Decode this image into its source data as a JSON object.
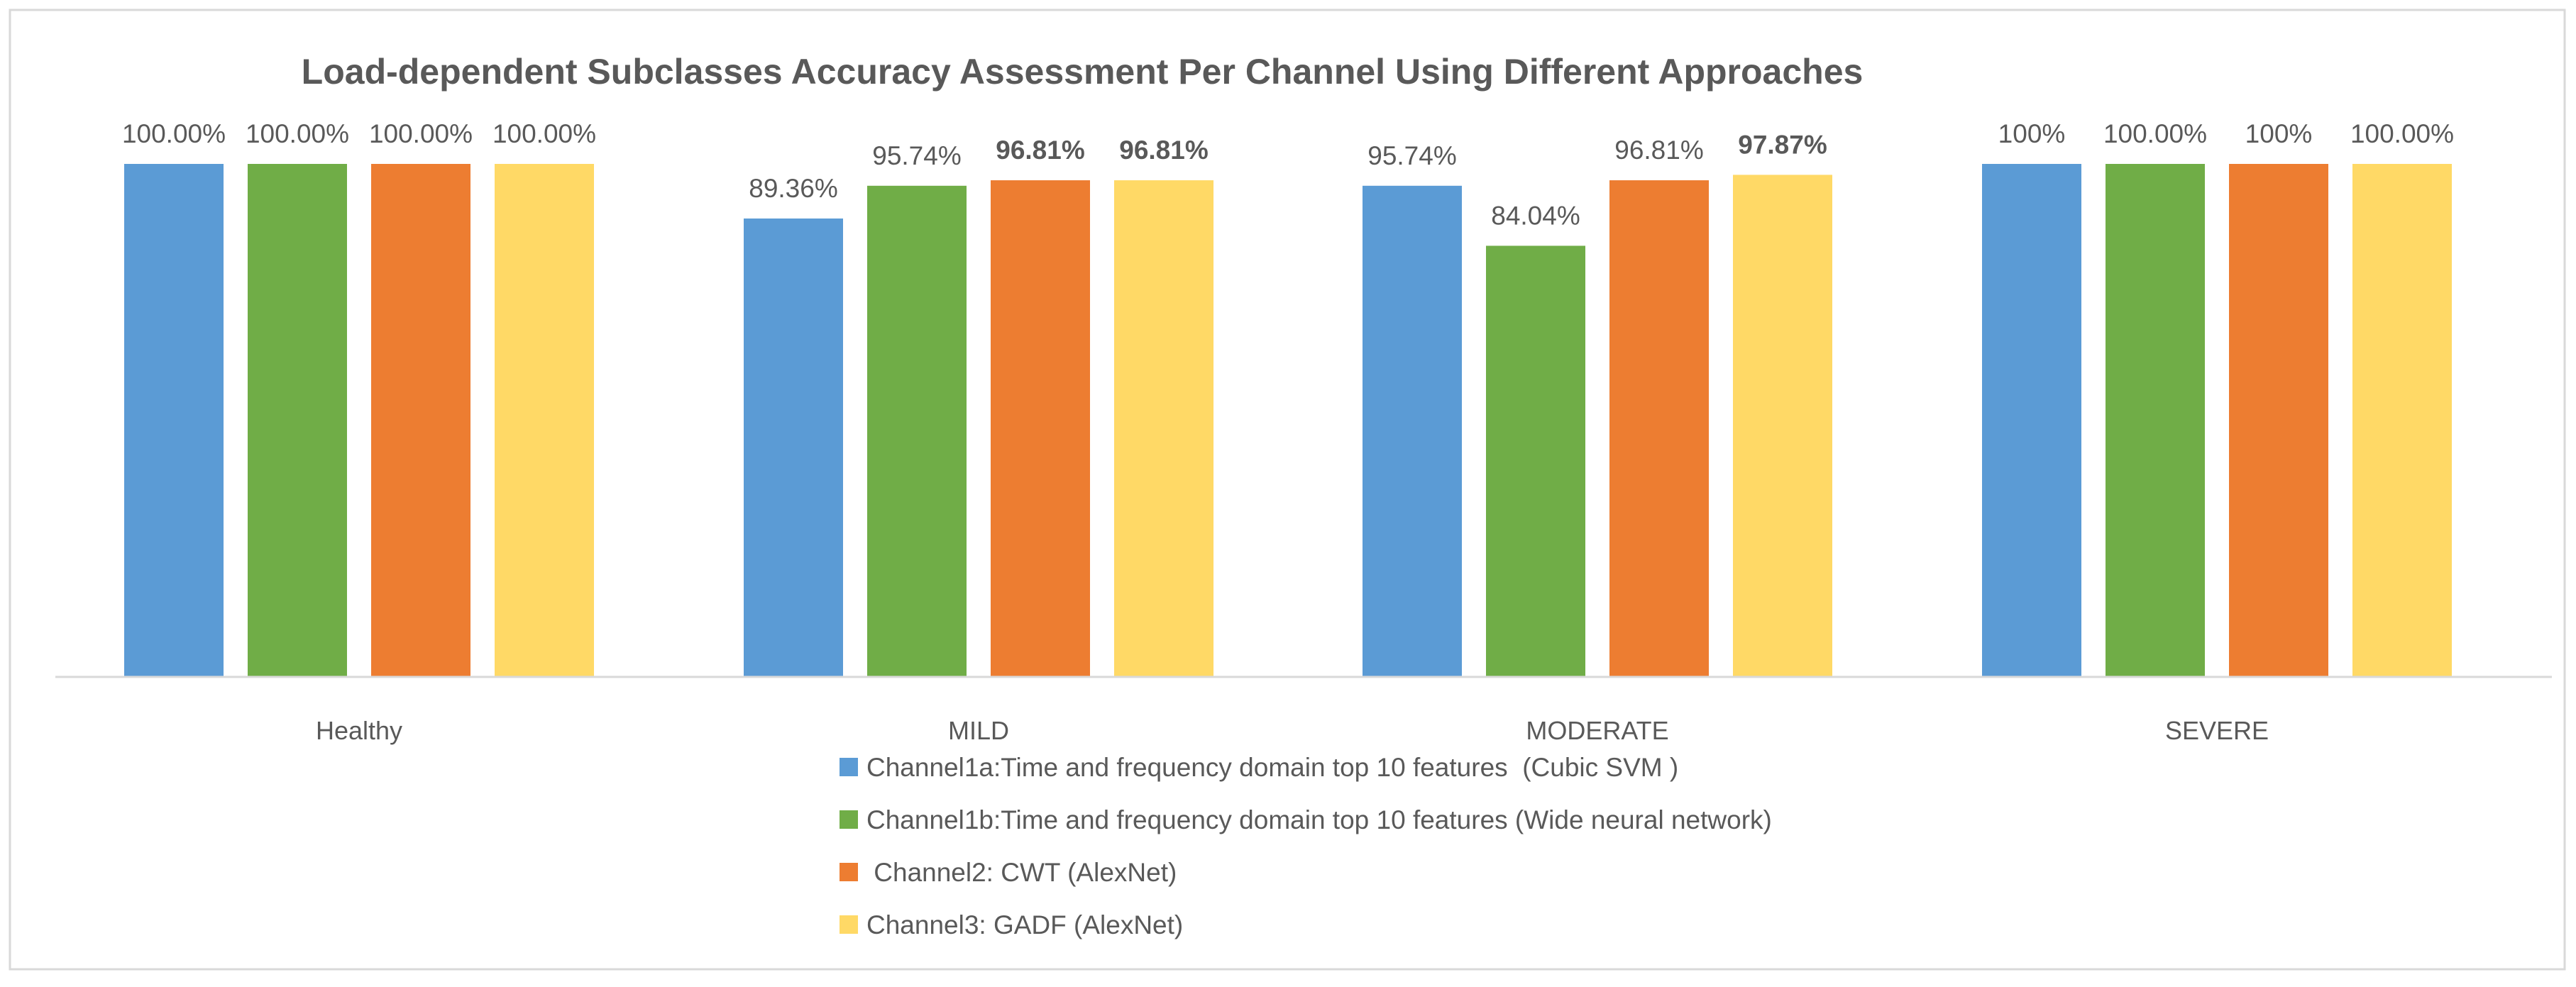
{
  "chart_data": {
    "type": "bar",
    "title": "Load-dependent Subclasses Accuracy Assessment Per Channel Using Different Approaches",
    "xlabel": "",
    "ylabel": "",
    "ylim": [
      0,
      100
    ],
    "grid": false,
    "legend_position": "bottom-center",
    "categories": [
      "Healthy",
      "MILD",
      "MODERATE",
      "SEVERE"
    ],
    "series": [
      {
        "name": "Channel1a:Time and frequency domain top 10 features  (Cubic SVM )",
        "color": "#5B9BD5",
        "values": [
          100,
          89.36,
          95.74,
          100
        ],
        "labels": [
          "100.00%",
          "89.36%",
          "95.74%",
          "100%"
        ],
        "bold": [
          false,
          false,
          false,
          false
        ]
      },
      {
        "name": "Channel1b:Time and frequency domain top 10 features (Wide neural network)",
        "color": "#70AD47",
        "values": [
          100,
          95.74,
          84.04,
          100
        ],
        "labels": [
          "100.00%",
          "95.74%",
          "84.04%",
          "100.00%"
        ],
        "bold": [
          false,
          false,
          false,
          false
        ]
      },
      {
        "name": " Channel2: CWT (AlexNet)",
        "color": "#ED7D31",
        "values": [
          100,
          96.81,
          96.81,
          100
        ],
        "labels": [
          "100.00%",
          "96.81%",
          "96.81%",
          "100%"
        ],
        "bold": [
          false,
          true,
          false,
          false
        ]
      },
      {
        "name": "Channel3: GADF (AlexNet)",
        "color": "#FFD966",
        "values": [
          100,
          96.81,
          97.87,
          100
        ],
        "labels": [
          "100.00%",
          "96.81%",
          "97.87%",
          "100.00%"
        ],
        "bold": [
          false,
          true,
          true,
          false
        ]
      }
    ]
  }
}
